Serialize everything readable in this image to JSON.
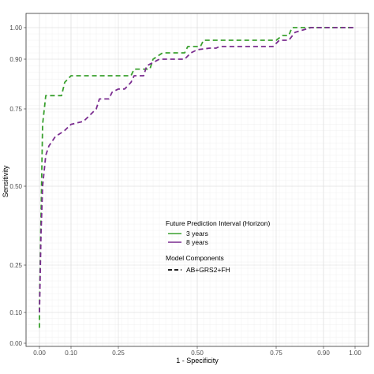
{
  "chart_data": {
    "type": "line",
    "xlabel": "1 - Specificity",
    "ylabel": "Sensitivity",
    "xlim": [
      0,
      1
    ],
    "ylim": [
      0,
      1
    ],
    "x_scale": "linear",
    "y_scale": "custom",
    "grid": "on",
    "x_ticks": [
      {
        "value": 0.0,
        "label": "0.00"
      },
      {
        "value": 0.1,
        "label": "0.10"
      },
      {
        "value": 0.25,
        "label": "0.25"
      },
      {
        "value": 0.5,
        "label": "0.50"
      },
      {
        "value": 0.75,
        "label": "0.75"
      },
      {
        "value": 0.9,
        "label": "0.90"
      },
      {
        "value": 1.0,
        "label": "1.00"
      }
    ],
    "y_ticks": [
      {
        "value": 0.0,
        "label": "0.00"
      },
      {
        "value": 0.1,
        "label": "0.10"
      },
      {
        "value": 0.25,
        "label": "0.25"
      },
      {
        "value": 0.5,
        "label": "0.50"
      },
      {
        "value": 0.75,
        "label": "0.75"
      },
      {
        "value": 0.9,
        "label": "0.90"
      },
      {
        "value": 1.0,
        "label": "1.00"
      }
    ],
    "legend": {
      "position": "center",
      "horizon_title": "Future Prediction Interval (Horizon)",
      "components_title": "Model Components",
      "components_label": "AB+GRS2+FH"
    },
    "series": [
      {
        "name": "3 years",
        "color": "#3aa02f",
        "dash": "dashed",
        "points": [
          [
            0,
            0.05
          ],
          [
            0,
            0.12
          ],
          [
            0.01,
            0.7
          ],
          [
            0.02,
            0.79
          ],
          [
            0.07,
            0.79
          ],
          [
            0.08,
            0.83
          ],
          [
            0.1,
            0.85
          ],
          [
            0.29,
            0.85
          ],
          [
            0.3,
            0.87
          ],
          [
            0.35,
            0.87
          ],
          [
            0.36,
            0.9
          ],
          [
            0.39,
            0.92
          ],
          [
            0.46,
            0.92
          ],
          [
            0.47,
            0.94
          ],
          [
            0.51,
            0.94
          ],
          [
            0.52,
            0.96
          ],
          [
            0.75,
            0.96
          ],
          [
            0.77,
            0.975
          ],
          [
            0.79,
            0.975
          ],
          [
            0.8,
            1.0
          ],
          [
            1.0,
            1.0
          ]
        ]
      },
      {
        "name": "8 years",
        "color": "#7a2c8f",
        "dash": "dashed",
        "points": [
          [
            0,
            0.1
          ],
          [
            0.005,
            0.35
          ],
          [
            0.01,
            0.5
          ],
          [
            0.02,
            0.6
          ],
          [
            0.03,
            0.63
          ],
          [
            0.05,
            0.66
          ],
          [
            0.08,
            0.68
          ],
          [
            0.1,
            0.7
          ],
          [
            0.14,
            0.71
          ],
          [
            0.18,
            0.75
          ],
          [
            0.19,
            0.78
          ],
          [
            0.22,
            0.78
          ],
          [
            0.23,
            0.8
          ],
          [
            0.25,
            0.81
          ],
          [
            0.27,
            0.81
          ],
          [
            0.29,
            0.83
          ],
          [
            0.3,
            0.85
          ],
          [
            0.33,
            0.85
          ],
          [
            0.34,
            0.88
          ],
          [
            0.38,
            0.9
          ],
          [
            0.46,
            0.9
          ],
          [
            0.48,
            0.92
          ],
          [
            0.5,
            0.93
          ],
          [
            0.54,
            0.935
          ],
          [
            0.56,
            0.935
          ],
          [
            0.57,
            0.94
          ],
          [
            0.74,
            0.94
          ],
          [
            0.76,
            0.96
          ],
          [
            0.79,
            0.96
          ],
          [
            0.81,
            0.985
          ],
          [
            0.86,
            1.0
          ],
          [
            1.0,
            1.0
          ]
        ]
      }
    ]
  }
}
